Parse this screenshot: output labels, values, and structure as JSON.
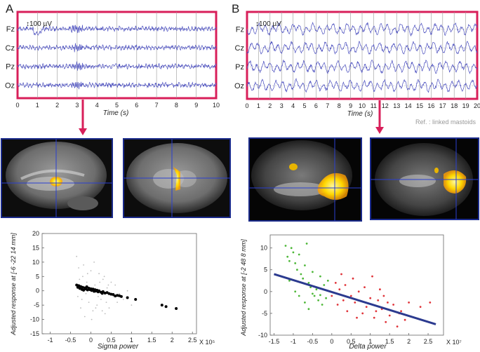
{
  "panel_labels": {
    "a": "A",
    "b": "B"
  },
  "eeg_a": {
    "scale_label": "100 µV",
    "channels": [
      "Fz",
      "Cz",
      "Pz",
      "Oz"
    ],
    "ticks": [
      "0",
      "1",
      "2",
      "3",
      "4",
      "5",
      "6",
      "7",
      "8",
      "9",
      "10"
    ],
    "xlabel": "Time (s)"
  },
  "eeg_b": {
    "scale_label": "100 µV",
    "channels": [
      "Fz",
      "Cz",
      "Pz",
      "Oz"
    ],
    "ticks": [
      "0",
      "1",
      "2",
      "3",
      "4",
      "5",
      "6",
      "7",
      "8",
      "9",
      "10",
      "11",
      "12",
      "13",
      "14",
      "15",
      "16",
      "17",
      "18",
      "19",
      "20"
    ],
    "xlabel": "Time (s)",
    "reference": "Ref. : linked mastoids"
  },
  "chart_data": [
    {
      "type": "scatter",
      "xlabel": "Sigma power",
      "ylabel": "Adjusted response at [-6 -22 14 mm]",
      "x_exponent": "X 10⁵",
      "xlim": [
        -1.2,
        2.6
      ],
      "ylim": [
        -15,
        20
      ],
      "xticks": [
        "-1",
        "-0.5",
        "0",
        "0.5",
        "1",
        "1.5",
        "2",
        "2.5"
      ],
      "yticks": [
        "-15",
        "-10",
        "-5",
        "0",
        "5",
        "10",
        "15",
        "20"
      ],
      "series": [
        {
          "color": "#000000",
          "points": [
            [
              -0.3,
              1.8
            ],
            [
              -0.27,
              0.8
            ],
            [
              -0.25,
              1.5
            ],
            [
              -0.22,
              0.5
            ],
            [
              -0.2,
              1.2
            ],
            [
              -0.18,
              0.2
            ],
            [
              -0.15,
              1.0
            ],
            [
              -0.12,
              0.6
            ],
            [
              -0.1,
              1.4
            ],
            [
              -0.08,
              0.3
            ],
            [
              -0.05,
              0.9
            ],
            [
              -0.02,
              0.4
            ],
            [
              0.0,
              0.7
            ],
            [
              0.02,
              0.1
            ],
            [
              0.05,
              0.6
            ],
            [
              0.08,
              -0.2
            ],
            [
              0.1,
              0.4
            ],
            [
              0.12,
              -0.1
            ],
            [
              0.15,
              0.2
            ],
            [
              0.18,
              -0.4
            ],
            [
              0.2,
              0.0
            ],
            [
              0.25,
              -0.5
            ],
            [
              0.3,
              -0.3
            ],
            [
              0.35,
              -0.8
            ],
            [
              0.4,
              -0.6
            ],
            [
              0.45,
              -1.0
            ],
            [
              0.55,
              -1.3
            ],
            [
              0.65,
              -1.6
            ],
            [
              0.75,
              -2.0
            ],
            [
              0.9,
              -2.4
            ],
            [
              1.1,
              -3.0
            ],
            [
              1.75,
              -5.0
            ],
            [
              1.85,
              -5.5
            ],
            [
              2.1,
              -6.2
            ],
            [
              -0.35,
              2.0
            ],
            [
              -0.32,
              1.2
            ],
            [
              0.28,
              -0.9
            ],
            [
              0.5,
              -1.2
            ],
            [
              0.6,
              -1.8
            ],
            [
              0.7,
              -1.7
            ]
          ]
        },
        {
          "color": "#bbbbbb",
          "points": [
            [
              -0.35,
              12
            ],
            [
              -0.3,
              8
            ],
            [
              -0.25,
              -6
            ],
            [
              -0.2,
              5
            ],
            [
              -0.15,
              -9
            ],
            [
              -0.1,
              3
            ],
            [
              -0.05,
              -4
            ],
            [
              0.0,
              7
            ],
            [
              0.05,
              -7
            ],
            [
              0.1,
              2
            ],
            [
              0.15,
              -5
            ],
            [
              0.2,
              6
            ],
            [
              0.25,
              -3
            ],
            [
              0.3,
              4
            ],
            [
              0.35,
              -8
            ],
            [
              0.4,
              1
            ],
            [
              0.45,
              -6
            ],
            [
              0.5,
              3
            ],
            [
              0.55,
              -2
            ],
            [
              0.6,
              2
            ],
            [
              0.65,
              -4
            ],
            [
              0.7,
              -1
            ],
            [
              0.8,
              -3
            ],
            [
              0.9,
              0
            ],
            [
              1.0,
              -5
            ],
            [
              -0.32,
              -2
            ],
            [
              -0.28,
              4
            ],
            [
              -0.22,
              -3
            ],
            [
              -0.18,
              9
            ],
            [
              -0.12,
              -1
            ],
            [
              -0.08,
              6
            ],
            [
              0.02,
              -10
            ],
            [
              0.08,
              10
            ],
            [
              0.12,
              -6
            ],
            [
              0.18,
              -2
            ],
            [
              0.22,
              3
            ],
            [
              0.28,
              -7
            ],
            [
              0.33,
              5
            ],
            [
              0.38,
              -4
            ],
            [
              0.43,
              2
            ]
          ]
        }
      ]
    },
    {
      "type": "scatter",
      "xlabel": "Delta power",
      "ylabel": "Adjusted response at [-2 48 8 mm]",
      "x_exponent": "X 10⁷",
      "xlim": [
        -1.6,
        2.9
      ],
      "ylim": [
        -10,
        13
      ],
      "xticks": [
        "-1.5",
        "-1",
        "-0.5",
        "0",
        "0.5",
        "1",
        "1.5",
        "2",
        "2.5"
      ],
      "yticks": [
        "-10",
        "-5",
        "0",
        "5",
        "10"
      ],
      "series": [
        {
          "color": "#4fb83a",
          "points": [
            [
              -1.2,
              10.5
            ],
            [
              -1.15,
              8.0
            ],
            [
              -1.1,
              7.0
            ],
            [
              -1.05,
              10.0
            ],
            [
              -1.0,
              9.0
            ],
            [
              -0.95,
              6.5
            ],
            [
              -0.9,
              5.0
            ],
            [
              -0.85,
              8.5
            ],
            [
              -0.8,
              4.0
            ],
            [
              -0.75,
              3.0
            ],
            [
              -0.7,
              6.0
            ],
            [
              -0.65,
              11.0
            ],
            [
              -0.6,
              2.0
            ],
            [
              -0.55,
              1.0
            ],
            [
              -0.5,
              4.5
            ],
            [
              -0.45,
              -1.0
            ],
            [
              -0.4,
              0.5
            ],
            [
              -0.35,
              -2.0
            ],
            [
              -0.3,
              3.5
            ],
            [
              -0.25,
              -3.0
            ],
            [
              -0.2,
              1.5
            ],
            [
              -0.15,
              -1.5
            ],
            [
              -0.1,
              2.5
            ],
            [
              -1.1,
              2.5
            ],
            [
              -0.95,
              0.0
            ],
            [
              -0.85,
              -1.0
            ],
            [
              -0.7,
              -2.5
            ],
            [
              -0.6,
              -4.0
            ],
            [
              -0.5,
              -0.5
            ],
            [
              -0.3,
              -0.8
            ]
          ]
        },
        {
          "color": "#e0343a",
          "points": [
            [
              0.0,
              -1.0
            ],
            [
              0.1,
              2.0
            ],
            [
              0.15,
              -3.0
            ],
            [
              0.2,
              0.5
            ],
            [
              0.3,
              -2.0
            ],
            [
              0.35,
              1.5
            ],
            [
              0.4,
              -4.5
            ],
            [
              0.5,
              -1.0
            ],
            [
              0.55,
              3.0
            ],
            [
              0.6,
              -2.5
            ],
            [
              0.7,
              0.0
            ],
            [
              0.8,
              -5.0
            ],
            [
              0.85,
              1.0
            ],
            [
              0.9,
              -3.5
            ],
            [
              1.0,
              -1.5
            ],
            [
              1.05,
              3.5
            ],
            [
              1.1,
              -6.0
            ],
            [
              1.2,
              -2.0
            ],
            [
              1.25,
              0.5
            ],
            [
              1.3,
              -4.0
            ],
            [
              1.4,
              -7.0
            ],
            [
              1.45,
              -2.5
            ],
            [
              1.5,
              -5.5
            ],
            [
              1.6,
              -3.0
            ],
            [
              1.7,
              -8.0
            ],
            [
              1.8,
              -4.5
            ],
            [
              1.9,
              -6.5
            ],
            [
              2.0,
              -2.5
            ],
            [
              2.3,
              -3.5
            ],
            [
              2.55,
              -2.5
            ],
            [
              0.25,
              4.0
            ],
            [
              0.65,
              -6.0
            ],
            [
              1.15,
              -4.5
            ],
            [
              1.35,
              -1.0
            ],
            [
              1.75,
              -5.0
            ]
          ]
        }
      ],
      "fit_line": {
        "color": "#2b3a8f",
        "from": [
          -1.5,
          4.0
        ],
        "to": [
          2.7,
          -7.5
        ]
      }
    }
  ]
}
